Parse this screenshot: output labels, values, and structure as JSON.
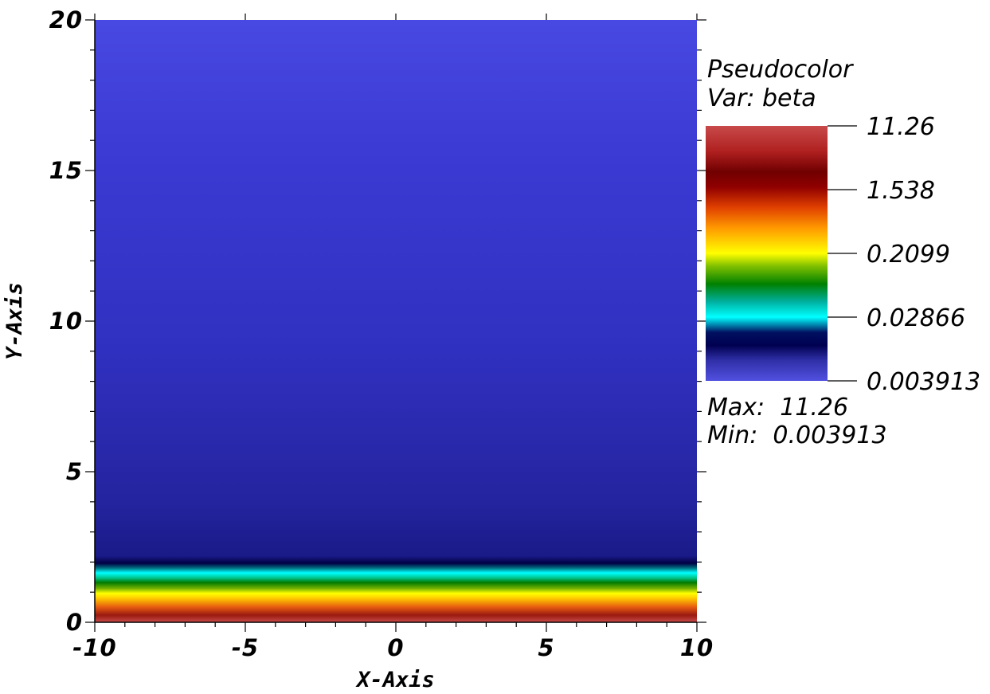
{
  "chart_data": {
    "type": "heatmap",
    "plot_kind": "Pseudocolor",
    "variable_label": "Var: beta",
    "legend_title": "Pseudocolor",
    "xlabel": "X-Axis",
    "ylabel": "Y-Axis",
    "xlim": [
      -10,
      10
    ],
    "ylim": [
      0,
      20
    ],
    "x_ticks": [
      "-10",
      "-5",
      "0",
      "5",
      "10"
    ],
    "x_tick_values": [
      -10,
      -5,
      0,
      5,
      10
    ],
    "y_ticks": [
      "0",
      "5",
      "10",
      "15",
      "20"
    ],
    "y_tick_values": [
      0,
      5,
      10,
      15,
      20
    ],
    "colorbar_ticks": [
      "11.26",
      "1.538",
      "0.2099",
      "0.02866",
      "0.003913"
    ],
    "colorbar_scale": "log",
    "max_label": "Max:  11.26",
    "min_label": "Min:  0.003913",
    "max": 11.26,
    "min": 0.003913,
    "colormap": [
      "#4040e0",
      "#000060",
      "#00ffff",
      "#007f00",
      "#ffff00",
      "#ff6600",
      "#800000",
      "#cc4444"
    ],
    "field_profile": {
      "y": [
        0,
        0.3,
        0.6,
        0.9,
        1.2,
        1.5,
        1.8,
        2.0,
        5,
        10,
        15,
        20
      ],
      "beta": [
        11.26,
        3.2,
        1.2,
        0.45,
        0.17,
        0.06,
        0.02,
        0.01,
        0.0055,
        0.0046,
        0.0042,
        0.003913
      ]
    }
  }
}
